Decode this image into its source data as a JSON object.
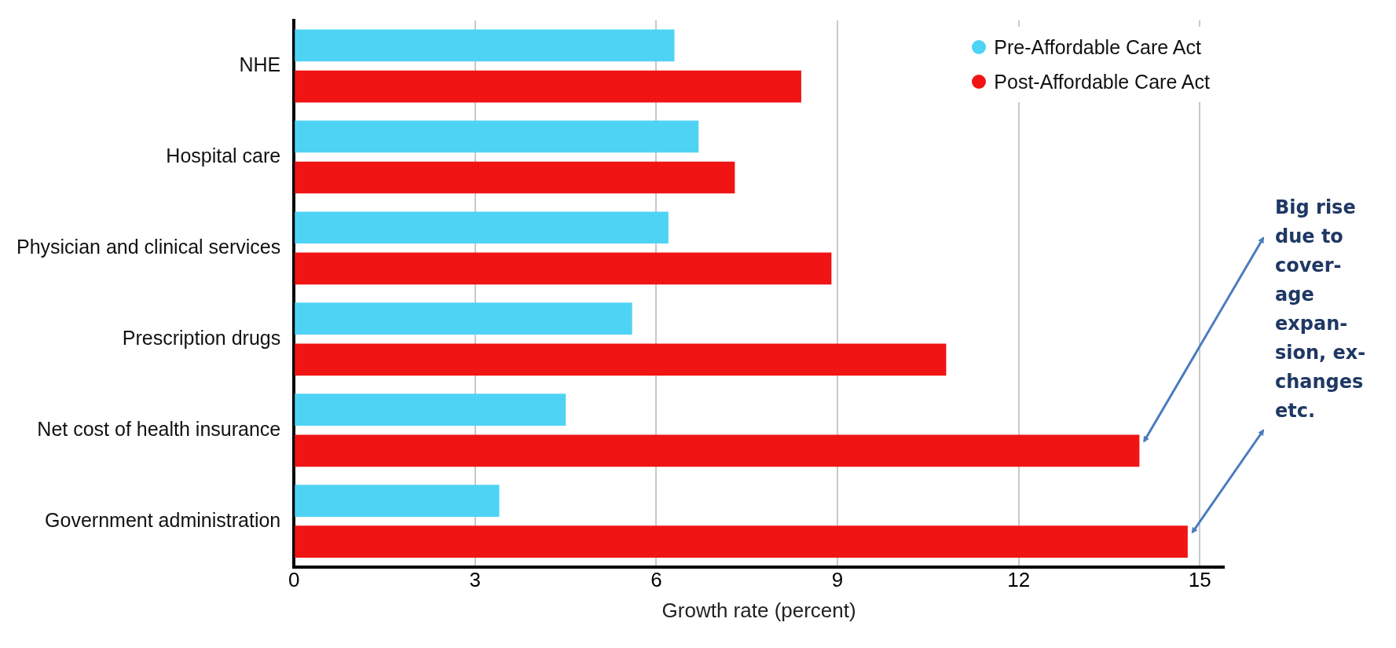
{
  "chart_data": {
    "type": "bar",
    "orientation": "horizontal",
    "categories": [
      "NHE",
      "Hospital care",
      "Physician and clinical services",
      "Prescription drugs",
      "Net cost of health insurance",
      "Government administration"
    ],
    "series": [
      {
        "name": "Pre-Affordable Care Act",
        "color": "#4fd3f5",
        "values": [
          6.3,
          6.7,
          6.2,
          5.6,
          4.5,
          3.4
        ]
      },
      {
        "name": "Post-Affordable Care Act",
        "color": "#f01414",
        "values": [
          8.4,
          7.3,
          8.9,
          10.8,
          14.0,
          14.8
        ]
      }
    ],
    "xlabel": "Growth rate (percent)",
    "xlim": [
      0,
      15.4
    ],
    "xticks": [
      0,
      3,
      6,
      9,
      12,
      15
    ],
    "grid": "x",
    "legend": "top right",
    "annotations": [
      "Big rise\ndue to\ncover-\nage\nexpan-\nsion, ex-\nchanges\netc."
    ]
  }
}
